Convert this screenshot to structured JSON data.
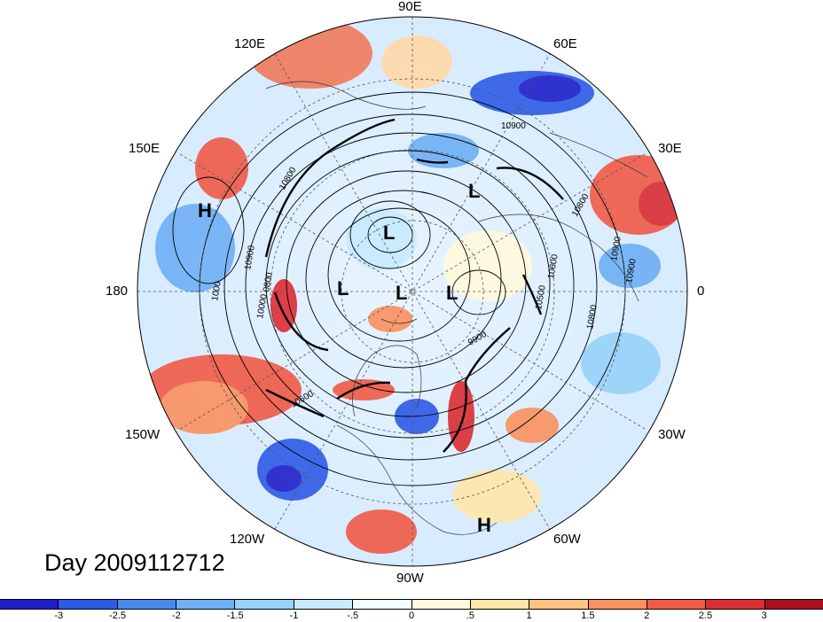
{
  "map": {
    "longitude_labels": [
      {
        "text": "90E",
        "name": "lon-label-90e"
      },
      {
        "text": "60E",
        "name": "lon-label-60e"
      },
      {
        "text": "30E",
        "name": "lon-label-30e"
      },
      {
        "text": "0",
        "name": "lon-label-0"
      },
      {
        "text": "30W",
        "name": "lon-label-30w"
      },
      {
        "text": "60W",
        "name": "lon-label-60w"
      },
      {
        "text": "90W",
        "name": "lon-label-90w"
      },
      {
        "text": "120W",
        "name": "lon-label-120w"
      },
      {
        "text": "150W",
        "name": "lon-label-150w"
      },
      {
        "text": "180",
        "name": "lon-label-180"
      },
      {
        "text": "150E",
        "name": "lon-label-150e"
      },
      {
        "text": "120E",
        "name": "lon-label-120e"
      }
    ],
    "pressure_centers": [
      {
        "text": "H",
        "name": "high-center-north-pacific"
      },
      {
        "text": "L",
        "name": "low-center-arctic-1"
      },
      {
        "text": "L",
        "name": "low-center-arctic-2"
      },
      {
        "text": "L",
        "name": "low-center-pole"
      },
      {
        "text": "L",
        "name": "low-center-atlantic"
      },
      {
        "text": "L",
        "name": "low-center-eurasia"
      },
      {
        "text": "H",
        "name": "high-center-atlantic"
      }
    ],
    "contour_labels": [
      "10900",
      "10800",
      "10900",
      "10000",
      "9900",
      "10600",
      "10500",
      "10800",
      "10900",
      "10600",
      "10800",
      "10900",
      "1000",
      "0800"
    ],
    "title": "Day 2009112712"
  },
  "colorbar": {
    "colors": [
      "#1e1ec8",
      "#2d5ae6",
      "#468cf0",
      "#6eaff5",
      "#96d2fa",
      "#c8ebff",
      "#f0fcff",
      "#fffadc",
      "#ffe6aa",
      "#ffc382",
      "#fa915f",
      "#f05a46",
      "#dc2d32",
      "#aa0f1e"
    ],
    "ticks": [
      "-3",
      "-2.5",
      "-2",
      "-1.5",
      "-1",
      "-.5",
      "0",
      ".5",
      "1",
      "1.5",
      "2",
      "2.5",
      "3"
    ]
  }
}
